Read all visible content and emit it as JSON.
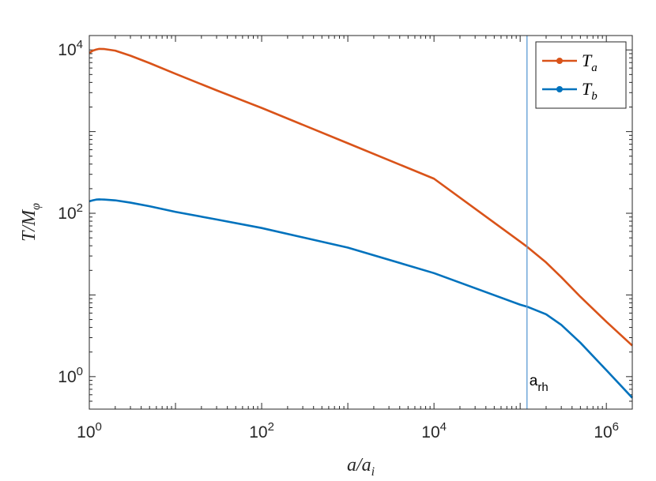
{
  "chart_data": {
    "type": "line",
    "xscale": "log",
    "yscale": "log",
    "xlim": [
      1,
      2000000
    ],
    "ylim": [
      0.4,
      15000
    ],
    "xlabel": "a/a_i",
    "ylabel": "T/M_φ",
    "grid": false,
    "legend_position": "top-right",
    "x_ticks": [
      {
        "value": 1,
        "base": "10",
        "exp": "0"
      },
      {
        "value": 100,
        "base": "10",
        "exp": "2"
      },
      {
        "value": 10000,
        "base": "10",
        "exp": "4"
      },
      {
        "value": 1000000,
        "base": "10",
        "exp": "6"
      }
    ],
    "y_ticks": [
      {
        "value": 1,
        "base": "10",
        "exp": "0"
      },
      {
        "value": 100,
        "base": "10",
        "exp": "2"
      },
      {
        "value": 10000,
        "base": "10",
        "exp": "4"
      }
    ],
    "vline": {
      "x": 120000,
      "label_main": "a",
      "label_sub": "rh",
      "color": "#5b9bd5"
    },
    "series": [
      {
        "name": "T_a",
        "name_main": "T",
        "name_sub": "a",
        "color": "#d95319",
        "x": [
          1,
          1.1,
          1.2,
          1.3,
          1.5,
          2,
          3,
          5,
          10,
          30,
          100,
          1000,
          10000,
          100000,
          120000,
          200000,
          300000,
          500000,
          1000000,
          2000000
        ],
        "y": [
          9200,
          9800,
          10100,
          10300,
          10250,
          9800,
          8500,
          6900,
          5100,
          3200,
          1950,
          720,
          265,
          45,
          39,
          25,
          16.5,
          9.5,
          4.7,
          2.4
        ]
      },
      {
        "name": "T_b",
        "name_main": "T",
        "name_sub": "b",
        "color": "#0072bd",
        "x": [
          1,
          1.1,
          1.2,
          1.3,
          1.5,
          2,
          3,
          5,
          10,
          30,
          100,
          1000,
          10000,
          100000,
          120000,
          200000,
          300000,
          500000,
          1000000,
          2000000
        ],
        "y": [
          140,
          144,
          147,
          148,
          147,
          144,
          135,
          122,
          104,
          84,
          66,
          38,
          18.5,
          7.6,
          7.2,
          5.8,
          4.3,
          2.6,
          1.2,
          0.55
        ]
      }
    ]
  }
}
